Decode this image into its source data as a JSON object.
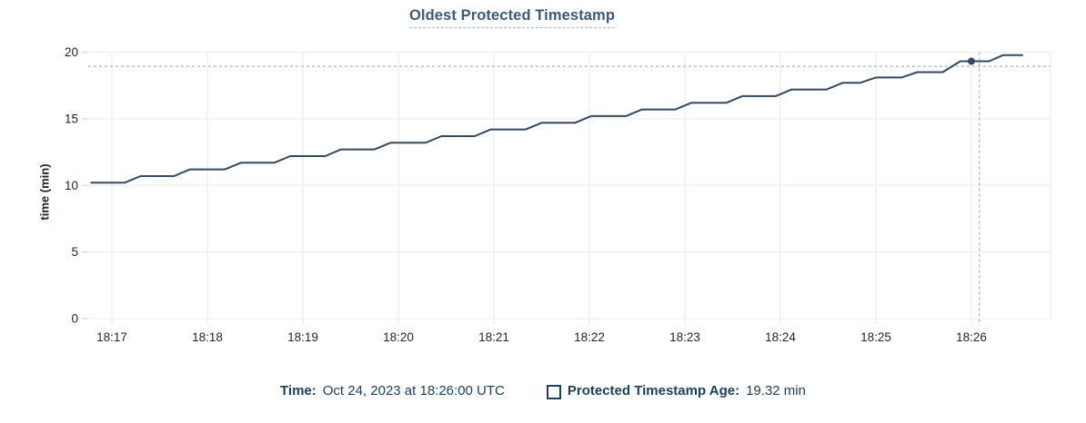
{
  "title": "Oldest Protected Timestamp",
  "y_axis_label": "time (min)",
  "legend": {
    "time_label": "Time:",
    "time_value": "Oct 24, 2023 at 18:26:00 UTC",
    "series_swatch_icon": "hollow-square-swatch",
    "series_label": "Protected Timestamp Age:",
    "series_value": "19.32 min"
  },
  "colors": {
    "line": "#35485E",
    "dot": "#35485E",
    "grid": "#EFEFF1",
    "tick": "#D9DCDF",
    "crosshair": "#A9BFCE",
    "axis_text": "#21262B",
    "title_text": "#3F5977",
    "legend_text": "#1B4060",
    "background": "#FFFFFF"
  },
  "chart_data": {
    "type": "line",
    "title": "Oldest Protected Timestamp",
    "xlabel": "",
    "ylabel": "time (min)",
    "ylim": [
      0,
      20
    ],
    "y_ticks": [
      0,
      5,
      10,
      15,
      20
    ],
    "x_tick_labels": [
      "18:17",
      "18:18",
      "18:19",
      "18:20",
      "18:21",
      "18:22",
      "18:23",
      "18:24",
      "18:25",
      "18:26"
    ],
    "x_tick_seconds": [
      0,
      60,
      120,
      180,
      240,
      300,
      360,
      420,
      480,
      540
    ],
    "x_domain_seconds": [
      -15,
      590
    ],
    "grid": true,
    "legend_position": "bottom",
    "series": [
      {
        "name": "Protected Timestamp Age",
        "unit": "min",
        "points": [
          [
            -13,
            10.2
          ],
          [
            8,
            10.2
          ],
          [
            18,
            10.7
          ],
          [
            39,
            10.7
          ],
          [
            49,
            11.2
          ],
          [
            71,
            11.2
          ],
          [
            81,
            11.7
          ],
          [
            102,
            11.7
          ],
          [
            112,
            12.2
          ],
          [
            134,
            12.2
          ],
          [
            144,
            12.7
          ],
          [
            165,
            12.7
          ],
          [
            175,
            13.2
          ],
          [
            197,
            13.2
          ],
          [
            207,
            13.7
          ],
          [
            228,
            13.7
          ],
          [
            238,
            14.2
          ],
          [
            260,
            14.2
          ],
          [
            270,
            14.7
          ],
          [
            291,
            14.7
          ],
          [
            301,
            15.2
          ],
          [
            323,
            15.2
          ],
          [
            333,
            15.7
          ],
          [
            354,
            15.7
          ],
          [
            364,
            16.2
          ],
          [
            386,
            16.2
          ],
          [
            396,
            16.7
          ],
          [
            417,
            16.7
          ],
          [
            427,
            17.2
          ],
          [
            449,
            17.2
          ],
          [
            459,
            17.7
          ],
          [
            470,
            17.7
          ],
          [
            480,
            18.1
          ],
          [
            496,
            18.1
          ],
          [
            506,
            18.5
          ],
          [
            522,
            18.5
          ],
          [
            533,
            19.32
          ],
          [
            551,
            19.32
          ],
          [
            560,
            19.78
          ],
          [
            572,
            19.78
          ]
        ]
      }
    ],
    "hover": {
      "point_time_label": "18:26:00",
      "point_seconds": 540,
      "point_value": 19.32,
      "crosshair_seconds": 545,
      "crosshair_value": 18.94
    }
  }
}
